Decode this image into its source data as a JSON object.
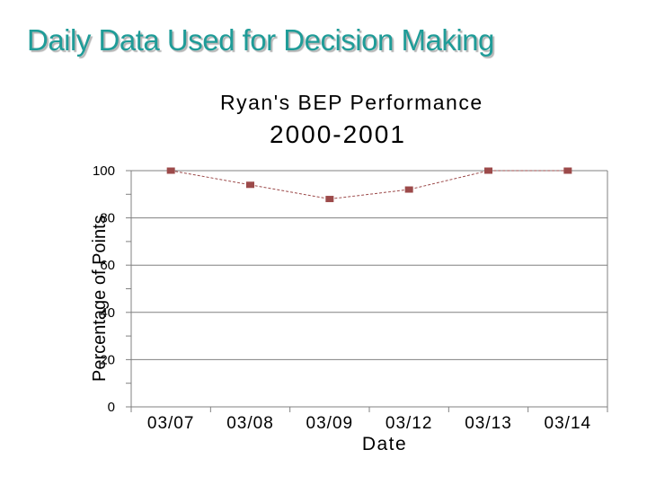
{
  "slide": {
    "title": "Daily Data Used for Decision Making"
  },
  "colors": {
    "title": "#1f9c98",
    "marker": "#9c4a4a",
    "line": "#9c4a4a",
    "grid": "#808080"
  },
  "chart_data": {
    "type": "line",
    "title": "Ryan's BEP Performance",
    "subtitle": "2000-2001",
    "xlabel": "Date",
    "ylabel": "Percentage of Points",
    "categories": [
      "03/07",
      "03/08",
      "03/09",
      "03/12",
      "03/13",
      "03/14"
    ],
    "series": [
      {
        "values": [
          100,
          94,
          88,
          92,
          100,
          100
        ]
      }
    ],
    "yticks": [
      "0",
      "20",
      "40",
      "60",
      "80",
      "100"
    ],
    "ytick_values": [
      0,
      20,
      40,
      60,
      80,
      100
    ],
    "ylim": [
      0,
      100
    ],
    "grid": true,
    "legend": "none"
  }
}
